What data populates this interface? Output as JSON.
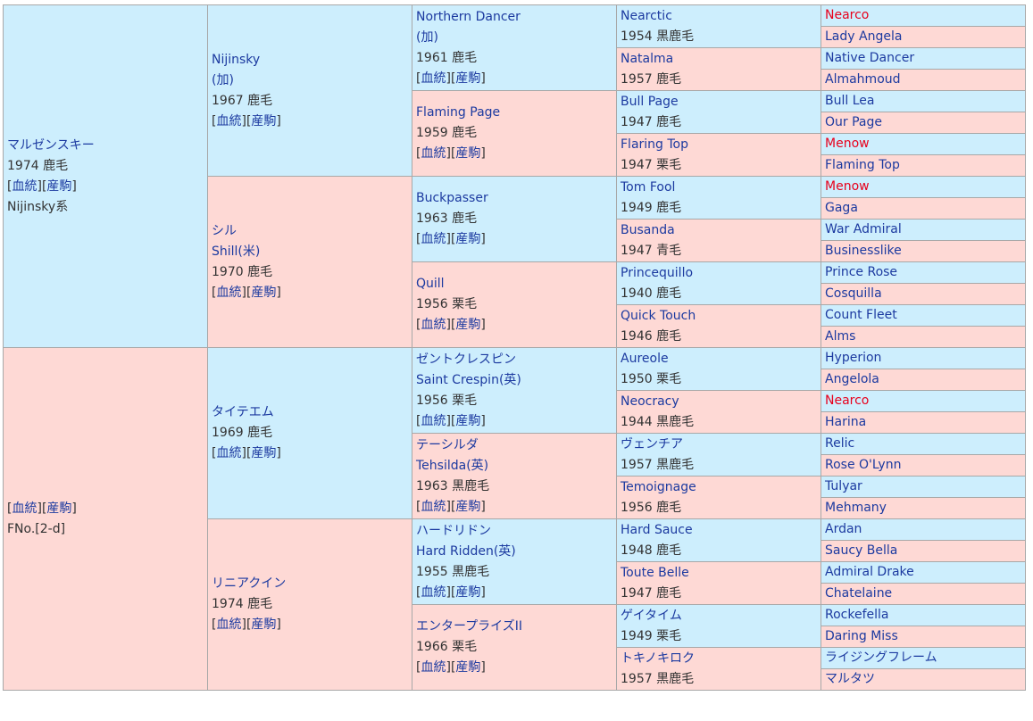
{
  "colors": {
    "sire_bg": "#cdeefd",
    "dam_bg": "#fed9d5",
    "link": "#1c3aa0",
    "highlight": "#e8001c"
  },
  "gen1": [
    {
      "name": "マルゼンスキー",
      "info": "1974 鹿毛",
      "links": [
        "血統",
        "産駒"
      ],
      "line": "Nijinsky系"
    },
    {
      "links": [
        "血統",
        "産駒"
      ],
      "line": "FNo.[2-d]"
    }
  ],
  "gen2": [
    {
      "name": "Nijinsky",
      "alt": "(加)",
      "info": "1967 鹿毛",
      "links": [
        "血統",
        "産駒"
      ]
    },
    {
      "name": "シル",
      "alt": "Shill(米)",
      "info": "1970 鹿毛",
      "links": [
        "血統",
        "産駒"
      ]
    },
    {
      "name": "タイテエム",
      "info": "1969 鹿毛",
      "links": [
        "血統",
        "産駒"
      ]
    },
    {
      "name": "リニアクイン",
      "info": "1974 鹿毛",
      "links": [
        "血統",
        "産駒"
      ]
    }
  ],
  "gen3": [
    {
      "name": "Northern Dancer",
      "alt": "(加)",
      "info": "1961 鹿毛",
      "links": [
        "血統",
        "産駒"
      ]
    },
    {
      "name": "Flaming Page",
      "info": "1959 鹿毛",
      "links": [
        "血統",
        "産駒"
      ]
    },
    {
      "name": "Buckpasser",
      "info": "1963 鹿毛",
      "links": [
        "血統",
        "産駒"
      ]
    },
    {
      "name": "Quill",
      "info": "1956 栗毛",
      "links": [
        "血統",
        "産駒"
      ]
    },
    {
      "name": "ゼントクレスピン",
      "alt": "Saint Crespin(英)",
      "info": "1956 栗毛",
      "links": [
        "血統",
        "産駒"
      ]
    },
    {
      "name": "テーシルダ",
      "alt": "Tehsilda(英)",
      "info": "1963 黒鹿毛",
      "links": [
        "血統",
        "産駒"
      ]
    },
    {
      "name": "ハードリドン",
      "alt": "Hard Ridden(英)",
      "info": "1955 黒鹿毛",
      "links": [
        "血統",
        "産駒"
      ]
    },
    {
      "name": "エンタープライズII",
      "info": "1966 栗毛",
      "links": [
        "血統",
        "産駒"
      ]
    }
  ],
  "gen4": [
    {
      "name": "Nearctic",
      "info": "1954 黒鹿毛"
    },
    {
      "name": "Natalma",
      "info": "1957 鹿毛"
    },
    {
      "name": "Bull Page",
      "info": "1947 鹿毛"
    },
    {
      "name": "Flaring Top",
      "info": "1947 栗毛"
    },
    {
      "name": "Tom Fool",
      "info": "1949 鹿毛"
    },
    {
      "name": "Busanda",
      "info": "1947 青毛"
    },
    {
      "name": "Princequillo",
      "info": "1940 鹿毛"
    },
    {
      "name": "Quick Touch",
      "info": "1946 鹿毛"
    },
    {
      "name": "Aureole",
      "info": "1950 栗毛"
    },
    {
      "name": "Neocracy",
      "info": "1944 黒鹿毛"
    },
    {
      "name": "ヴェンチア",
      "info": "1957 黒鹿毛"
    },
    {
      "name": "Temoignage",
      "info": "1956 鹿毛"
    },
    {
      "name": "Hard Sauce",
      "info": "1948 鹿毛"
    },
    {
      "name": "Toute Belle",
      "info": "1947 鹿毛"
    },
    {
      "name": "ゲイタイム",
      "info": "1949 栗毛"
    },
    {
      "name": "トキノキロク",
      "info": "1957 黒鹿毛"
    }
  ],
  "gen5": [
    {
      "name": "Nearco",
      "red": true
    },
    {
      "name": "Lady Angela"
    },
    {
      "name": "Native Dancer"
    },
    {
      "name": "Almahmoud"
    },
    {
      "name": "Bull Lea"
    },
    {
      "name": "Our Page"
    },
    {
      "name": "Menow",
      "red": true
    },
    {
      "name": "Flaming Top"
    },
    {
      "name": "Menow",
      "red": true
    },
    {
      "name": "Gaga"
    },
    {
      "name": "War Admiral"
    },
    {
      "name": "Businesslike"
    },
    {
      "name": "Prince Rose"
    },
    {
      "name": "Cosquilla"
    },
    {
      "name": "Count Fleet"
    },
    {
      "name": "Alms"
    },
    {
      "name": "Hyperion"
    },
    {
      "name": "Angelola"
    },
    {
      "name": "Nearco",
      "red": true
    },
    {
      "name": "Harina"
    },
    {
      "name": "Relic"
    },
    {
      "name": "Rose O'Lynn"
    },
    {
      "name": "Tulyar"
    },
    {
      "name": "Mehmany"
    },
    {
      "name": "Ardan"
    },
    {
      "name": "Saucy Bella"
    },
    {
      "name": "Admiral Drake"
    },
    {
      "name": "Chatelaine"
    },
    {
      "name": "Rockefella"
    },
    {
      "name": "Daring Miss"
    },
    {
      "name": "ライジングフレーム"
    },
    {
      "name": "マルタツ"
    }
  ]
}
